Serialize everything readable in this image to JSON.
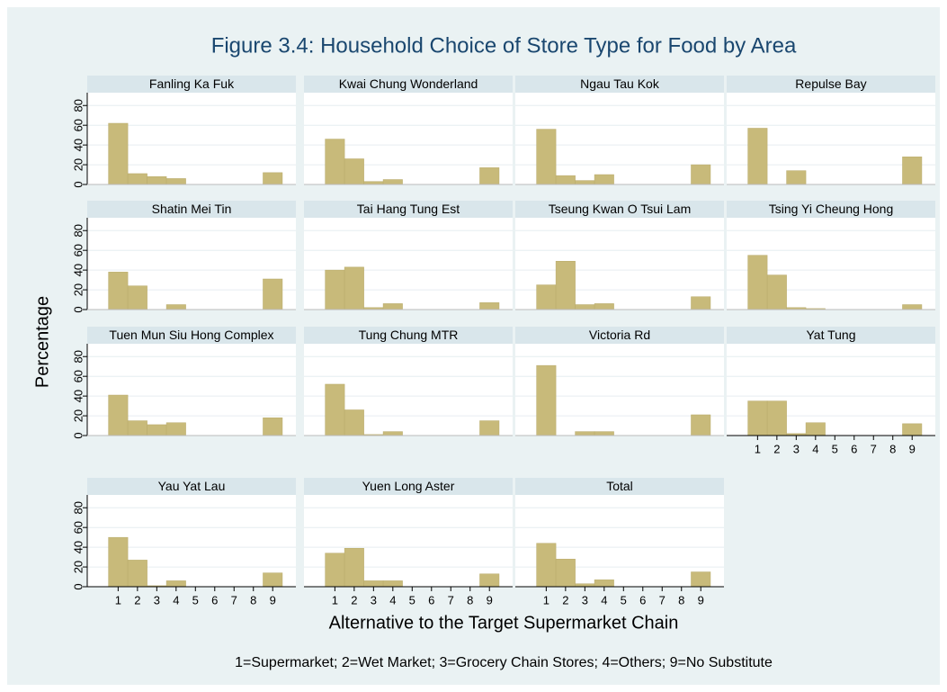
{
  "figure": {
    "title": "Figure 3.4: Household Choice of Store Type for Food by Area",
    "y_label": "Percentage",
    "x_label": "Alternative to the Target Supermarket Chain",
    "note": "1=Supermarket; 2=Wet Market; 3=Grocery Chain Stores; 4=Others; 9=No Substitute"
  },
  "chart_data": [
    {
      "type": "histogram",
      "title": "Fanling Ka Fuk",
      "bins": [
        0.5,
        1.5,
        2.5,
        3.5,
        4.5,
        5.5,
        6.5,
        7.5,
        8.5,
        9.5
      ],
      "values": [
        62,
        11,
        8,
        6,
        0,
        0,
        0,
        0,
        12
      ],
      "color": "#c8ba7a",
      "xlim": [
        -0.6,
        10.2
      ],
      "ylim": [
        0,
        93
      ],
      "yticks": [
        0,
        20,
        40,
        60,
        80
      ],
      "grid": true
    },
    {
      "type": "histogram",
      "title": "Kwai Chung Wonderland",
      "bins": [
        0.5,
        1.5,
        2.5,
        3.5,
        4.5,
        5.5,
        6.5,
        7.5,
        8.5,
        9.5
      ],
      "values": [
        46,
        26,
        3,
        5,
        0,
        0,
        0,
        0,
        17
      ],
      "color": "#c8ba7a",
      "xlim": [
        -0.6,
        10.2
      ],
      "ylim": [
        0,
        93
      ],
      "yticks": [
        0,
        20,
        40,
        60,
        80
      ],
      "grid": true
    },
    {
      "type": "histogram",
      "title": "Ngau Tau Kok",
      "bins": [
        0.5,
        1.5,
        2.5,
        3.5,
        4.5,
        5.5,
        6.5,
        7.5,
        8.5,
        9.5
      ],
      "values": [
        56,
        9,
        4,
        10,
        0,
        0,
        0,
        0,
        20
      ],
      "color": "#c8ba7a",
      "xlim": [
        -0.6,
        10.2
      ],
      "ylim": [
        0,
        93
      ],
      "yticks": [
        0,
        20,
        40,
        60,
        80
      ],
      "grid": true
    },
    {
      "type": "histogram",
      "title": "Repulse Bay",
      "bins": [
        0.5,
        1.5,
        2.5,
        3.5,
        4.5,
        5.5,
        6.5,
        7.5,
        8.5,
        9.5
      ],
      "values": [
        57,
        0,
        14,
        0,
        0,
        0,
        0,
        0,
        28
      ],
      "color": "#c8ba7a",
      "xlim": [
        -0.6,
        10.2
      ],
      "ylim": [
        0,
        93
      ],
      "yticks": [
        0,
        20,
        40,
        60,
        80
      ],
      "grid": true
    },
    {
      "type": "histogram",
      "title": "Shatin Mei Tin",
      "bins": [
        0.5,
        1.5,
        2.5,
        3.5,
        4.5,
        5.5,
        6.5,
        7.5,
        8.5,
        9.5
      ],
      "values": [
        38,
        24,
        0,
        5,
        0,
        0,
        0,
        0,
        31
      ],
      "color": "#c8ba7a",
      "xlim": [
        -0.6,
        10.2
      ],
      "ylim": [
        0,
        93
      ],
      "yticks": [
        0,
        20,
        40,
        60,
        80
      ],
      "grid": true
    },
    {
      "type": "histogram",
      "title": "Tai Hang Tung Est",
      "bins": [
        0.5,
        1.5,
        2.5,
        3.5,
        4.5,
        5.5,
        6.5,
        7.5,
        8.5,
        9.5
      ],
      "values": [
        40,
        43,
        2,
        6,
        0,
        0,
        0,
        0,
        7
      ],
      "color": "#c8ba7a",
      "xlim": [
        -0.6,
        10.2
      ],
      "ylim": [
        0,
        93
      ],
      "yticks": [
        0,
        20,
        40,
        60,
        80
      ],
      "grid": true
    },
    {
      "type": "histogram",
      "title": "Tseung Kwan O Tsui Lam",
      "bins": [
        0.5,
        1.5,
        2.5,
        3.5,
        4.5,
        5.5,
        6.5,
        7.5,
        8.5,
        9.5
      ],
      "values": [
        25,
        49,
        5,
        6,
        0,
        0,
        0,
        0,
        13
      ],
      "color": "#c8ba7a",
      "xlim": [
        -0.6,
        10.2
      ],
      "ylim": [
        0,
        93
      ],
      "yticks": [
        0,
        20,
        40,
        60,
        80
      ],
      "grid": true
    },
    {
      "type": "histogram",
      "title": "Tsing Yi Cheung Hong",
      "bins": [
        0.5,
        1.5,
        2.5,
        3.5,
        4.5,
        5.5,
        6.5,
        7.5,
        8.5,
        9.5
      ],
      "values": [
        55,
        35,
        2,
        1,
        0,
        0,
        0,
        0,
        5
      ],
      "color": "#c8ba7a",
      "xlim": [
        -0.6,
        10.2
      ],
      "ylim": [
        0,
        93
      ],
      "yticks": [
        0,
        20,
        40,
        60,
        80
      ],
      "grid": true
    },
    {
      "type": "histogram",
      "title": "Tuen Mun Siu Hong Complex",
      "bins": [
        0.5,
        1.5,
        2.5,
        3.5,
        4.5,
        5.5,
        6.5,
        7.5,
        8.5,
        9.5
      ],
      "values": [
        41,
        15,
        11,
        13,
        0,
        0,
        0,
        0,
        18
      ],
      "color": "#c8ba7a",
      "xlim": [
        -0.6,
        10.2
      ],
      "ylim": [
        0,
        93
      ],
      "yticks": [
        0,
        20,
        40,
        60,
        80
      ],
      "grid": true
    },
    {
      "type": "histogram",
      "title": "Tung Chung MTR",
      "bins": [
        0.5,
        1.5,
        2.5,
        3.5,
        4.5,
        5.5,
        6.5,
        7.5,
        8.5,
        9.5
      ],
      "values": [
        52,
        26,
        1,
        4,
        0,
        0,
        0,
        0,
        15
      ],
      "color": "#c8ba7a",
      "xlim": [
        -0.6,
        10.2
      ],
      "ylim": [
        0,
        93
      ],
      "yticks": [
        0,
        20,
        40,
        60,
        80
      ],
      "grid": true
    },
    {
      "type": "histogram",
      "title": "Victoria Rd",
      "bins": [
        0.5,
        1.5,
        2.5,
        3.5,
        4.5,
        5.5,
        6.5,
        7.5,
        8.5,
        9.5
      ],
      "values": [
        71,
        0,
        4,
        4,
        0,
        0,
        0,
        0,
        21
      ],
      "color": "#c8ba7a",
      "xlim": [
        -0.6,
        10.2
      ],
      "ylim": [
        0,
        93
      ],
      "yticks": [
        0,
        20,
        40,
        60,
        80
      ],
      "grid": true
    },
    {
      "type": "histogram",
      "title": "Yat Tung",
      "bins": [
        0.5,
        1.5,
        2.5,
        3.5,
        4.5,
        5.5,
        6.5,
        7.5,
        8.5,
        9.5
      ],
      "values": [
        35,
        35,
        2,
        13,
        0,
        0,
        0,
        0,
        12
      ],
      "color": "#c8ba7a",
      "xlim": [
        -0.6,
        10.2
      ],
      "ylim": [
        0,
        93
      ],
      "yticks": [
        0,
        20,
        40,
        60,
        80
      ],
      "xticks": [
        1,
        2,
        3,
        4,
        5,
        6,
        7,
        8,
        9
      ],
      "grid": true
    },
    {
      "type": "histogram",
      "title": "Yau Yat Lau",
      "bins": [
        0.5,
        1.5,
        2.5,
        3.5,
        4.5,
        5.5,
        6.5,
        7.5,
        8.5,
        9.5
      ],
      "values": [
        50,
        27,
        1,
        6,
        0,
        0,
        0,
        0,
        14
      ],
      "color": "#c8ba7a",
      "xlim": [
        -0.6,
        10.2
      ],
      "ylim": [
        0,
        93
      ],
      "yticks": [
        0,
        20,
        40,
        60,
        80
      ],
      "xticks": [
        1,
        2,
        3,
        4,
        5,
        6,
        7,
        8,
        9
      ],
      "grid": true
    },
    {
      "type": "histogram",
      "title": "Yuen Long Aster",
      "bins": [
        0.5,
        1.5,
        2.5,
        3.5,
        4.5,
        5.5,
        6.5,
        7.5,
        8.5,
        9.5
      ],
      "values": [
        34,
        39,
        6,
        6,
        0,
        0,
        0,
        0,
        13
      ],
      "color": "#c8ba7a",
      "xlim": [
        -0.6,
        10.2
      ],
      "ylim": [
        0,
        93
      ],
      "yticks": [
        0,
        20,
        40,
        60,
        80
      ],
      "xticks": [
        1,
        2,
        3,
        4,
        5,
        6,
        7,
        8,
        9
      ],
      "grid": true
    },
    {
      "type": "histogram",
      "title": "Total",
      "bins": [
        0.5,
        1.5,
        2.5,
        3.5,
        4.5,
        5.5,
        6.5,
        7.5,
        8.5,
        9.5
      ],
      "values": [
        44,
        28,
        3,
        7,
        0,
        0,
        0,
        0,
        15
      ],
      "color": "#c8ba7a",
      "xlim": [
        -0.6,
        10.2
      ],
      "ylim": [
        0,
        93
      ],
      "yticks": [
        0,
        20,
        40,
        60,
        80
      ],
      "xticks": [
        1,
        2,
        3,
        4,
        5,
        6,
        7,
        8,
        9
      ],
      "grid": true
    }
  ]
}
